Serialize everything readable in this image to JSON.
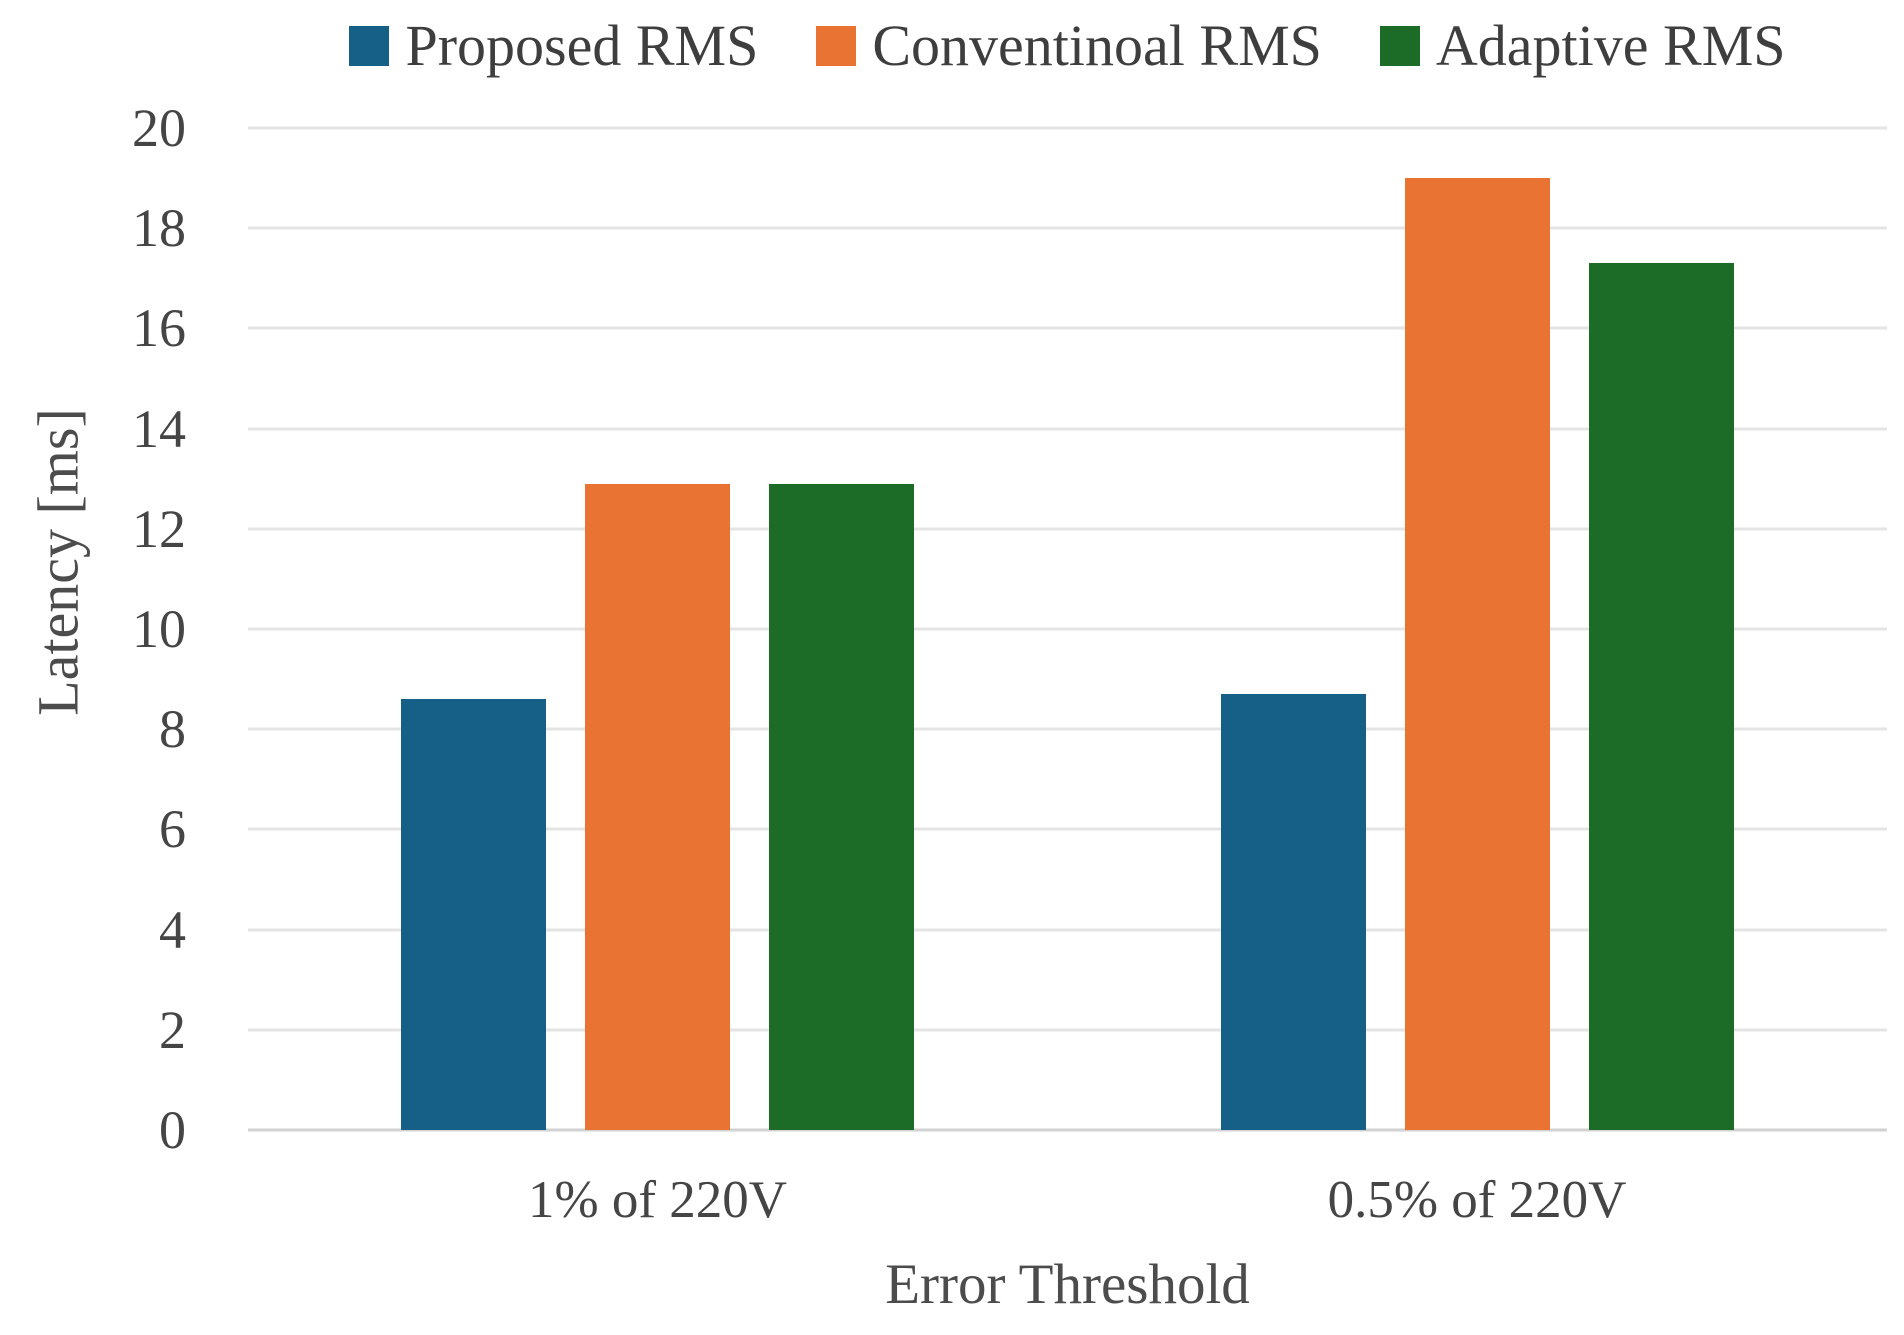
{
  "chart_data": {
    "type": "bar",
    "title": "",
    "categories": [
      "1% of 220V",
      "0.5% of 220V"
    ],
    "series": [
      {
        "name": "Proposed RMS",
        "color": "#166087",
        "values": [
          8.6,
          8.7
        ]
      },
      {
        "name": "Conventinoal RMS",
        "color": "#E87332",
        "values": [
          12.9,
          19.0
        ]
      },
      {
        "name": "Adaptive RMS",
        "color": "#1C6B26",
        "values": [
          12.9,
          17.3
        ]
      }
    ],
    "xlabel": "Error Threshold",
    "ylabel": "Latency [ms]",
    "ylim": [
      0,
      20
    ],
    "yticks": [
      0,
      2,
      4,
      6,
      8,
      10,
      12,
      14,
      16,
      18,
      20
    ],
    "grid": true,
    "legend_position": "top"
  },
  "colors": {
    "background": "#ffffff",
    "gridline": "#e4e4e4",
    "baseline": "#d2d2d2",
    "tick_text": "#454545",
    "axis_title_text": "#4c4c4c",
    "legend_text": "#3e3e3e"
  }
}
